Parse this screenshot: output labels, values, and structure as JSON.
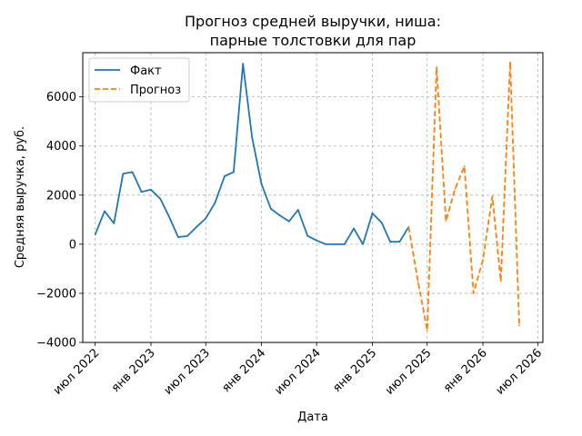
{
  "chart_data": {
    "type": "line",
    "title_line1": "Прогноз средней выручки, ниша:",
    "title_line2": "парные толстовки для пар",
    "xlabel": "Дата",
    "ylabel": "Средняя выручка, руб.",
    "xlim": [
      "2022-05-21",
      "2026-07-18"
    ],
    "ylim": [
      -4000,
      7800
    ],
    "grid": true,
    "legend_position": "upper-left",
    "x_ticks": [
      {
        "date": "2022-07-01",
        "label": "июл 2022"
      },
      {
        "date": "2023-01-01",
        "label": "янв 2023"
      },
      {
        "date": "2023-07-01",
        "label": "июл 2023"
      },
      {
        "date": "2024-01-01",
        "label": "янв 2024"
      },
      {
        "date": "2024-07-01",
        "label": "июл 2024"
      },
      {
        "date": "2025-01-01",
        "label": "янв 2025"
      },
      {
        "date": "2025-07-01",
        "label": "июл 2025"
      },
      {
        "date": "2026-01-01",
        "label": "янв 2026"
      },
      {
        "date": "2026-07-01",
        "label": "июл 2026"
      }
    ],
    "y_ticks": [
      {
        "value": -4000,
        "label": "−4000"
      },
      {
        "value": -2000,
        "label": "−2000"
      },
      {
        "value": 0,
        "label": "0"
      },
      {
        "value": 2000,
        "label": "2000"
      },
      {
        "value": 4000,
        "label": "4000"
      },
      {
        "value": 6000,
        "label": "6000"
      }
    ],
    "series": [
      {
        "name": "Факт",
        "color": "#1f77b4",
        "style": "solid",
        "points": [
          [
            "2022-07-01",
            400
          ],
          [
            "2022-08-01",
            1350
          ],
          [
            "2022-09-01",
            850
          ],
          [
            "2022-10-01",
            2870
          ],
          [
            "2022-11-01",
            2940
          ],
          [
            "2022-12-01",
            2130
          ],
          [
            "2023-01-01",
            2220
          ],
          [
            "2023-02-01",
            1850
          ],
          [
            "2023-03-01",
            1150
          ],
          [
            "2023-04-01",
            290
          ],
          [
            "2023-05-01",
            330
          ],
          [
            "2023-06-01",
            710
          ],
          [
            "2023-07-01",
            1050
          ],
          [
            "2023-08-01",
            1700
          ],
          [
            "2023-09-01",
            2770
          ],
          [
            "2023-10-01",
            2940
          ],
          [
            "2023-11-01",
            7350
          ],
          [
            "2023-12-01",
            4350
          ],
          [
            "2024-01-01",
            2460
          ],
          [
            "2024-02-01",
            1440
          ],
          [
            "2024-03-01",
            1180
          ],
          [
            "2024-04-01",
            930
          ],
          [
            "2024-05-01",
            1400
          ],
          [
            "2024-06-01",
            340
          ],
          [
            "2024-07-01",
            150
          ],
          [
            "2024-08-01",
            0
          ],
          [
            "2024-09-01",
            0
          ],
          [
            "2024-10-01",
            0
          ],
          [
            "2024-11-01",
            640
          ],
          [
            "2024-12-01",
            0
          ],
          [
            "2025-01-01",
            1260
          ],
          [
            "2025-02-01",
            870
          ],
          [
            "2025-03-01",
            100
          ],
          [
            "2025-04-01",
            100
          ],
          [
            "2025-05-01",
            700
          ]
        ]
      },
      {
        "name": "Прогноз",
        "color": "#ff7f0e",
        "style": "dashed",
        "points": [
          [
            "2025-05-01",
            700
          ],
          [
            "2025-06-01",
            -1550
          ],
          [
            "2025-07-01",
            -3500
          ],
          [
            "2025-08-01",
            7200
          ],
          [
            "2025-09-01",
            950
          ],
          [
            "2025-10-01",
            2250
          ],
          [
            "2025-11-01",
            3170
          ],
          [
            "2025-12-01",
            -2000
          ],
          [
            "2026-01-01",
            -650
          ],
          [
            "2026-02-01",
            1950
          ],
          [
            "2026-03-01",
            -1500
          ],
          [
            "2026-04-01",
            7400
          ],
          [
            "2026-05-01",
            -3300
          ]
        ]
      }
    ]
  }
}
